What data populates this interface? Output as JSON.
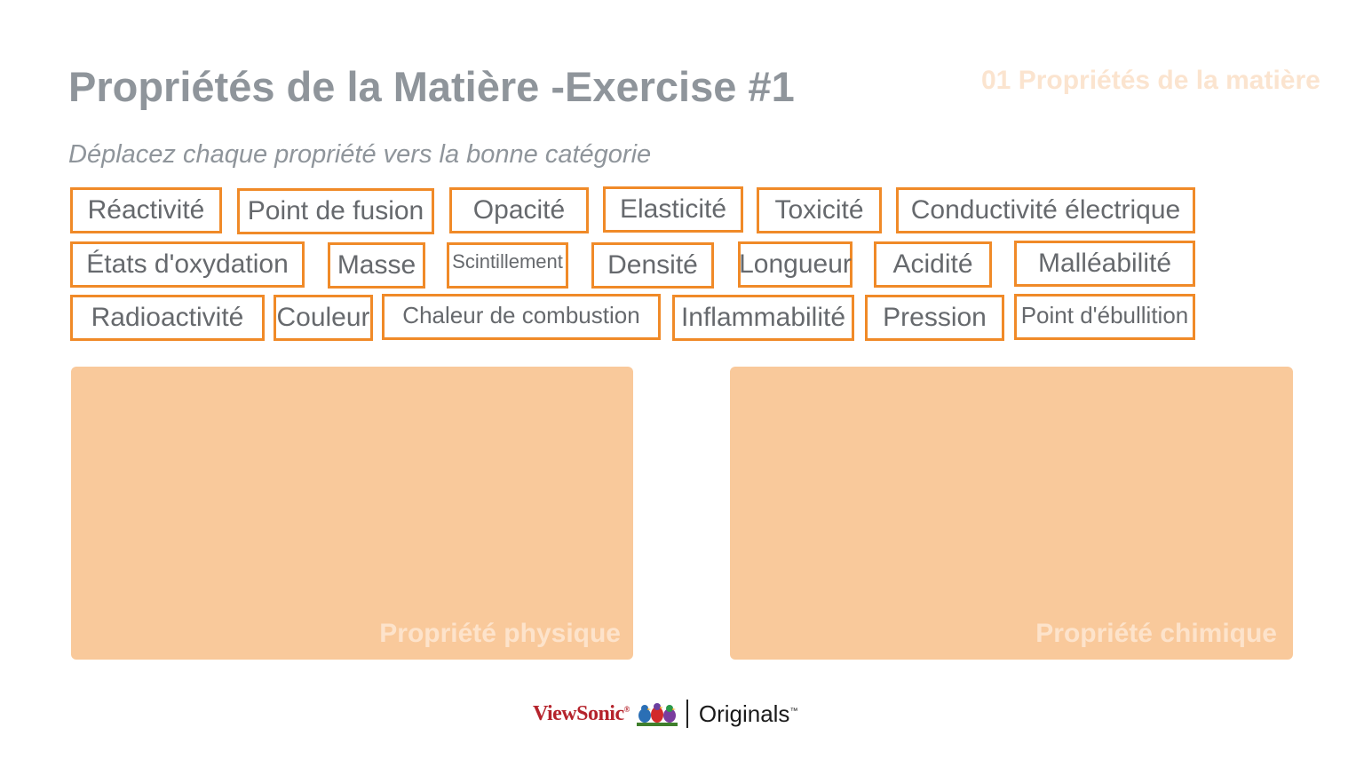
{
  "header": {
    "title": "Propriétés de la Matière -Exercise #1",
    "section": "01 Propriétés de la matière",
    "instruction": "Déplacez chaque propriété vers la bonne catégorie"
  },
  "chips": [
    "Réactivité",
    "Point de fusion",
    "Opacité",
    "Elasticité",
    "Toxicité",
    "Conductivité électrique",
    "États d'oxydation",
    "Masse",
    "Scintillement",
    "Densité",
    "Longueur",
    "Acidité",
    "Malléabilité",
    "Radioactivité",
    "Couleur",
    "Chaleur de combustion",
    "Inflammabilité",
    "Pression",
    "Point d'ébullition"
  ],
  "zones": {
    "physical": "Propriété physique",
    "chemical": "Propriété chimique"
  },
  "footer": {
    "brand": "ViewSonic",
    "brand_mark": "®",
    "product": "Originals",
    "product_mark": "™"
  },
  "colors": {
    "chip_border": "#f08a28",
    "zone_fill": "#f9c99b",
    "title_gray": "#8f959b"
  }
}
